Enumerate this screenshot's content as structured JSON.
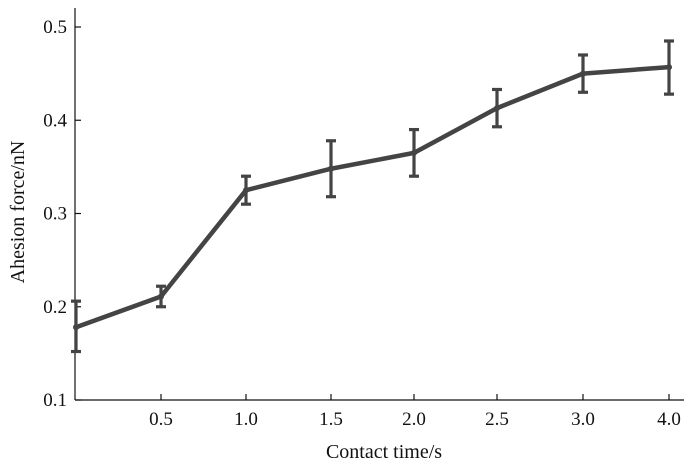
{
  "chart_data": {
    "type": "line",
    "title": "",
    "xlabel": "Contact time/s",
    "ylabel": "Ahesion force/nN",
    "ylim": [
      0.1,
      0.5
    ],
    "grid": false,
    "legend": "none",
    "x_tick_labels": [
      "0.5",
      "1.0",
      "1.5",
      "2.0",
      "2.5",
      "3.0",
      "4.0"
    ],
    "y_tick_labels": [
      "0.1",
      "0.2",
      "0.3",
      "0.4",
      "0.5"
    ],
    "y_ticks": [
      0.1,
      0.2,
      0.3,
      0.4,
      0.5
    ],
    "series": [
      {
        "x": [
          "",
          "0.5",
          "1.0",
          "1.5",
          "2.0",
          "2.5",
          "3.0",
          "4.0"
        ],
        "values": [
          0.178,
          0.211,
          0.325,
          0.348,
          0.365,
          0.413,
          0.45,
          0.457
        ],
        "error_low": [
          0.152,
          0.2,
          0.31,
          0.318,
          0.34,
          0.393,
          0.43,
          0.428
        ],
        "error_high": [
          0.206,
          0.222,
          0.34,
          0.378,
          0.39,
          0.433,
          0.47,
          0.485
        ],
        "color": "#444444"
      }
    ]
  }
}
